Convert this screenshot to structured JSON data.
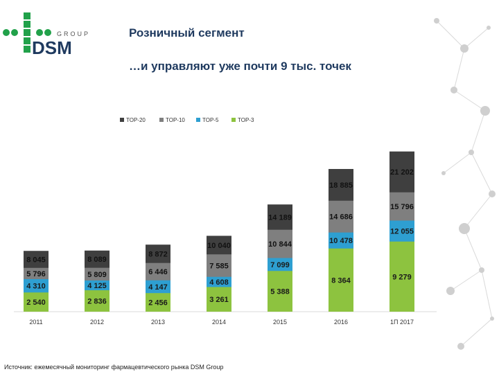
{
  "logo": {
    "text": "DSM",
    "sub": "GROUP"
  },
  "header": {
    "title": "Розничный сегмент",
    "subtitle": "…и управляют уже почти 9 тыс. точек"
  },
  "source": "Источник: ежемесячный мониторинг фармацевтического рынка DSM Group",
  "chart_data": {
    "type": "bar",
    "stacked": false,
    "layout": "overlapping cumulative columns",
    "categories": [
      "2011",
      "2012",
      "2013",
      "2014",
      "2015",
      "2016",
      "1П 2017"
    ],
    "series": [
      {
        "name": "TOP-20",
        "color": "#3f3f3f",
        "values": [
          8045,
          8089,
          8872,
          10040,
          14189,
          18885,
          21202
        ]
      },
      {
        "name": "TOP-10",
        "color": "#7f7f7f",
        "values": [
          5796,
          5809,
          6446,
          7585,
          10844,
          14686,
          15796
        ]
      },
      {
        "name": "TOP-5",
        "color": "#2e9fd1",
        "values": [
          4310,
          4125,
          4147,
          4608,
          7099,
          10478,
          12055
        ]
      },
      {
        "name": "TOP-3",
        "color": "#8dc33f",
        "values": [
          2540,
          2836,
          2456,
          3261,
          5388,
          8364,
          9279
        ]
      }
    ],
    "value_labels": [
      [
        "8 045",
        "8 089",
        "8 872",
        "10 040",
        "14 189",
        "18 885",
        "21 202"
      ],
      [
        "5 796",
        "5 809",
        "6 446",
        "7 585",
        "10 844",
        "14 686",
        "15 796"
      ],
      [
        "4 310",
        "4 125",
        "4 147",
        "4 608",
        "7 099",
        "10 478",
        "12 055"
      ],
      [
        "2 540",
        "2 836",
        "2 456",
        "3 261",
        "5 388",
        "8 364",
        "9 279"
      ]
    ],
    "ylim": [
      0,
      22000
    ],
    "legend": "top-left",
    "grid": false
  }
}
